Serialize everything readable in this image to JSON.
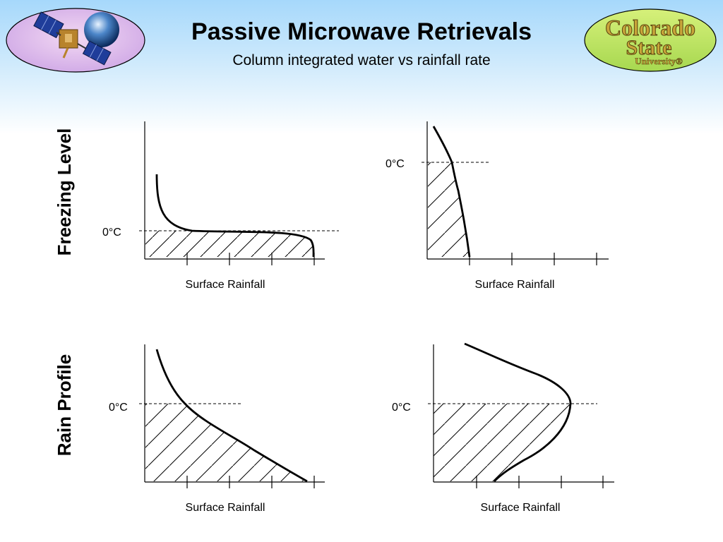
{
  "header": {
    "title": "Passive Microwave Retrievals",
    "subtitle": "Column integrated water vs rainfall rate"
  },
  "logo": {
    "line1": "Colorado",
    "line2": "State",
    "line3": "University"
  },
  "row_labels": {
    "top": "Freezing Level",
    "bottom": "Rain Profile"
  },
  "panels": [
    {
      "id": "top-left",
      "xlabel": "Surface Rainfall",
      "freezing_label": "0°C"
    },
    {
      "id": "top-right",
      "xlabel": "Surface Rainfall",
      "freezing_label": "0°C"
    },
    {
      "id": "bottom-left",
      "xlabel": "Surface Rainfall",
      "freezing_label": "0°C"
    },
    {
      "id": "bottom-right",
      "xlabel": "Surface Rainfall",
      "freezing_label": "0°C"
    }
  ],
  "colors": {
    "header_gradient_top": "#a6d8fb",
    "left_badge_fill": "#e9c4ee",
    "right_badge_fill": "#c7e86a"
  }
}
